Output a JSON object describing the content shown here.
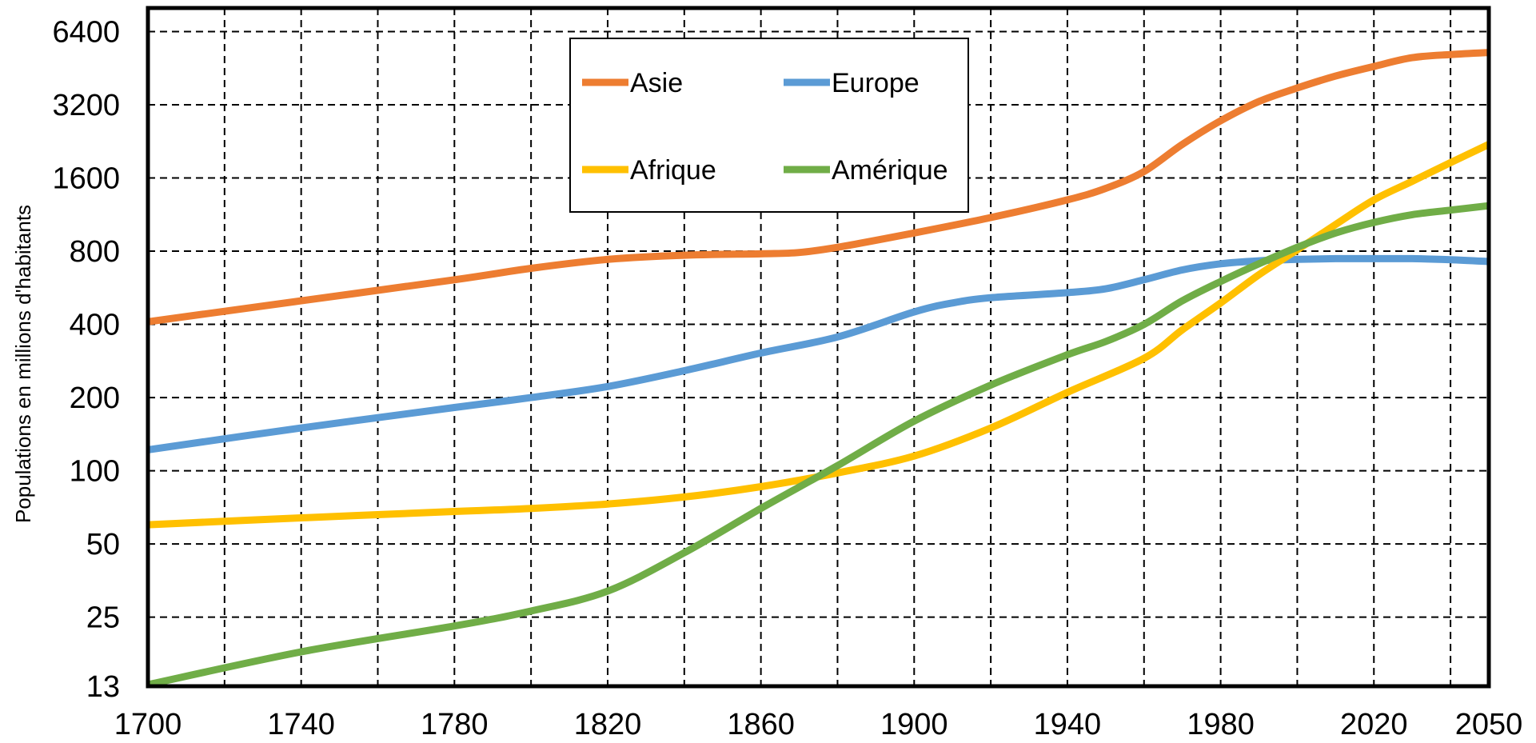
{
  "chart_data": {
    "type": "line",
    "ylabel": "Populations en millions d'habitants",
    "y_scale": "log2",
    "ylim": [
      13,
      8000
    ],
    "xlim": [
      1700,
      2050
    ],
    "x_ticks": [
      "1700",
      "1740",
      "1780",
      "1820",
      "1860",
      "1900",
      "1940",
      "1980",
      "2020",
      "2050"
    ],
    "x_tick_values": [
      1700,
      1740,
      1780,
      1820,
      1860,
      1900,
      1940,
      1980,
      2020,
      2050
    ],
    "y_ticks": [
      "13",
      "25",
      "50",
      "100",
      "200",
      "400",
      "800",
      "1600",
      "3200",
      "6400"
    ],
    "y_tick_values": [
      13,
      25,
      50,
      100,
      200,
      400,
      800,
      1600,
      3200,
      6400
    ],
    "grid": true,
    "legend_placement": "top-center",
    "series": [
      {
        "name": "Asie",
        "color": "#ED7D31",
        "x": [
          1700,
          1740,
          1780,
          1800,
          1820,
          1840,
          1860,
          1870,
          1880,
          1900,
          1920,
          1940,
          1950,
          1960,
          1970,
          1980,
          1990,
          2000,
          2010,
          2020,
          2030,
          2040,
          2050
        ],
        "y": [
          410,
          500,
          610,
          680,
          740,
          770,
          780,
          790,
          830,
          950,
          1100,
          1300,
          1450,
          1700,
          2200,
          2750,
          3300,
          3750,
          4200,
          4600,
          5000,
          5150,
          5250
        ]
      },
      {
        "name": "Europe",
        "color": "#5B9BD5",
        "x": [
          1700,
          1740,
          1780,
          1800,
          1820,
          1840,
          1860,
          1880,
          1900,
          1910,
          1920,
          1940,
          1950,
          1960,
          1970,
          1980,
          1990,
          2000,
          2010,
          2020,
          2030,
          2040,
          2050
        ],
        "y": [
          122,
          150,
          182,
          200,
          222,
          258,
          305,
          355,
          450,
          490,
          515,
          540,
          560,
          610,
          670,
          710,
          730,
          740,
          745,
          745,
          745,
          738,
          725
        ]
      },
      {
        "name": "Afrique",
        "color": "#FFC000",
        "x": [
          1700,
          1740,
          1780,
          1800,
          1820,
          1840,
          1860,
          1880,
          1900,
          1920,
          1940,
          1960,
          1970,
          1980,
          1990,
          2000,
          2010,
          2020,
          2030,
          2040,
          2050
        ],
        "y": [
          60,
          64,
          68,
          70,
          73,
          78,
          86,
          98,
          115,
          150,
          210,
          290,
          380,
          490,
          640,
          810,
          1030,
          1300,
          1550,
          1850,
          2200
        ]
      },
      {
        "name": "Amérique",
        "color": "#70AD47",
        "x": [
          1700,
          1740,
          1780,
          1800,
          1820,
          1840,
          1860,
          1880,
          1900,
          1920,
          1940,
          1950,
          1960,
          1970,
          1980,
          1990,
          2000,
          2010,
          2020,
          2030,
          2040,
          2050
        ],
        "y": [
          13.2,
          18,
          23,
          26.5,
          32,
          46,
          70,
          105,
          160,
          225,
          300,
          340,
          400,
          500,
          600,
          710,
          830,
          950,
          1050,
          1130,
          1180,
          1230
        ]
      }
    ]
  }
}
